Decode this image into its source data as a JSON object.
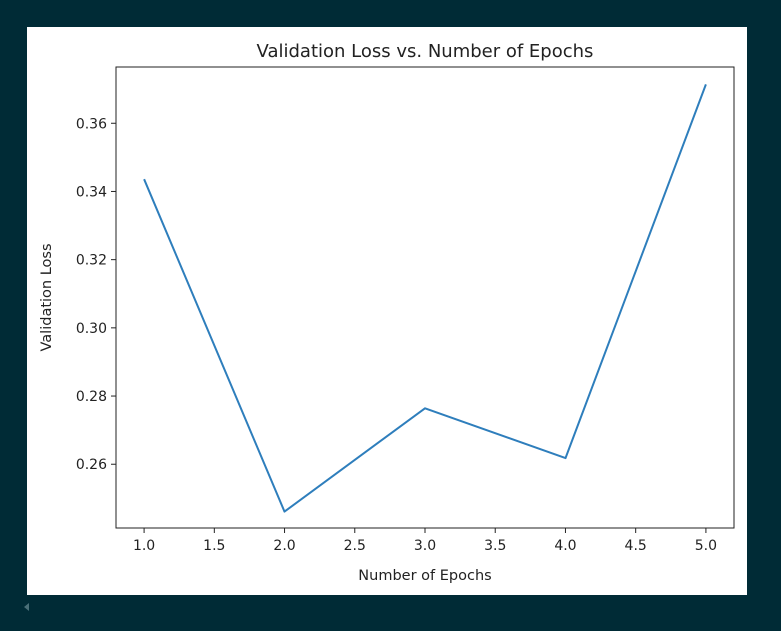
{
  "colors": {
    "background": "#002b36",
    "figure_bg": "#ffffff",
    "line": "#2e7ebc",
    "axis": "#222222"
  },
  "chart_data": {
    "type": "line",
    "title": "Validation Loss vs. Number of Epochs",
    "xlabel": "Number of Epochs",
    "ylabel": "Validation Loss",
    "xlim": [
      0.8,
      5.2
    ],
    "ylim": [
      0.2413,
      0.3765
    ],
    "xticks": [
      1.0,
      1.5,
      2.0,
      2.5,
      3.0,
      3.5,
      4.0,
      4.5,
      5.0
    ],
    "xtick_labels": [
      "1.0",
      "1.5",
      "2.0",
      "2.5",
      "3.0",
      "3.5",
      "4.0",
      "4.5",
      "5.0"
    ],
    "yticks": [
      0.26,
      0.28,
      0.3,
      0.32,
      0.34,
      0.36
    ],
    "ytick_labels": [
      "0.26",
      "0.28",
      "0.30",
      "0.32",
      "0.34",
      "0.36"
    ],
    "grid": false,
    "series": [
      {
        "x": [
          1,
          2,
          3,
          4,
          5
        ],
        "values": [
          0.3436,
          0.2461,
          0.2764,
          0.2618,
          0.3714
        ]
      }
    ]
  },
  "icons": {
    "scroll_left": "scroll-left-arrow-icon"
  }
}
